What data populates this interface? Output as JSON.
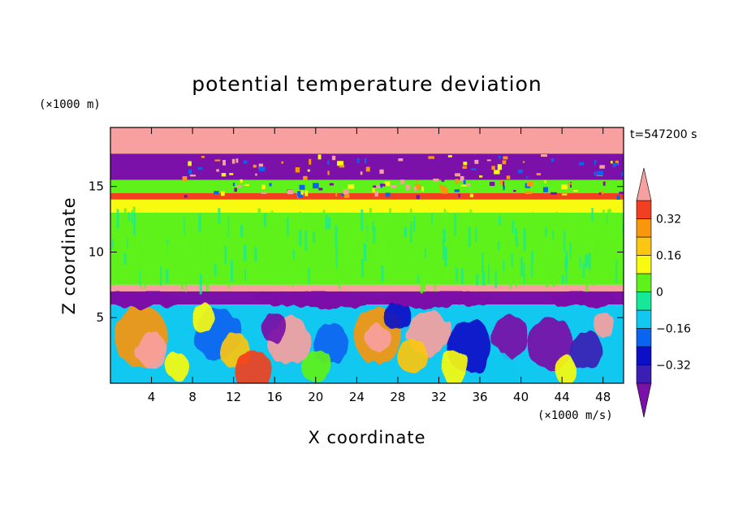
{
  "chart_data": {
    "type": "heatmap",
    "title": "potential temperature deviation",
    "xlabel": "X coordinate",
    "ylabel": "Z coordinate",
    "x_unit": "(×1000 m/s)",
    "y_unit": "(×1000 m)",
    "time_label": "t=547200 s",
    "xlim": [
      0,
      50
    ],
    "ylim": [
      0,
      19.5
    ],
    "x_ticks": [
      4,
      8,
      12,
      16,
      20,
      24,
      28,
      32,
      36,
      40,
      44,
      48
    ],
    "y_ticks": [
      5,
      10,
      15
    ],
    "colorbar": {
      "levels": [
        -0.4,
        -0.32,
        -0.24,
        -0.16,
        -0.08,
        0,
        0.08,
        0.16,
        0.24,
        0.32,
        0.4
      ],
      "tick_values": [
        0.32,
        0.16,
        0,
        -0.16,
        -0.32
      ],
      "tick_labels": [
        "0.32",
        "0.16",
        "0",
        "−0.16",
        "−0.32"
      ],
      "colors": [
        "#7b11a8",
        "#3b1fb4",
        "#0b10c8",
        "#0a64f0",
        "#10c8f0",
        "#16e89a",
        "#5ef21a",
        "#f8fa10",
        "#fcc612",
        "#f8960c",
        "#f04020",
        "#f8a0a0"
      ],
      "extend": "both"
    },
    "field": {
      "description_layers": [
        {
          "z_range": [
            17.5,
            19.5
          ],
          "value": 0.45
        },
        {
          "z_range": [
            15.5,
            17.5
          ],
          "value": -0.45
        },
        {
          "z_range": [
            14.5,
            15.5
          ],
          "value": 0.05
        },
        {
          "z_range": [
            14.0,
            14.5
          ],
          "value": 0.35
        },
        {
          "z_range": [
            13.0,
            14.0
          ],
          "value": 0.1
        },
        {
          "z_range": [
            7.5,
            13.0
          ],
          "value": 0.02
        },
        {
          "z_range": [
            7.0,
            7.5
          ],
          "value": 0.45
        },
        {
          "z_range": [
            6.0,
            7.0
          ],
          "value": -0.45
        },
        {
          "z_range": [
            0.0,
            6.0
          ],
          "value": "eddies"
        }
      ]
    }
  },
  "colors": {
    "frame": "#000000",
    "background": "#ffffff"
  }
}
